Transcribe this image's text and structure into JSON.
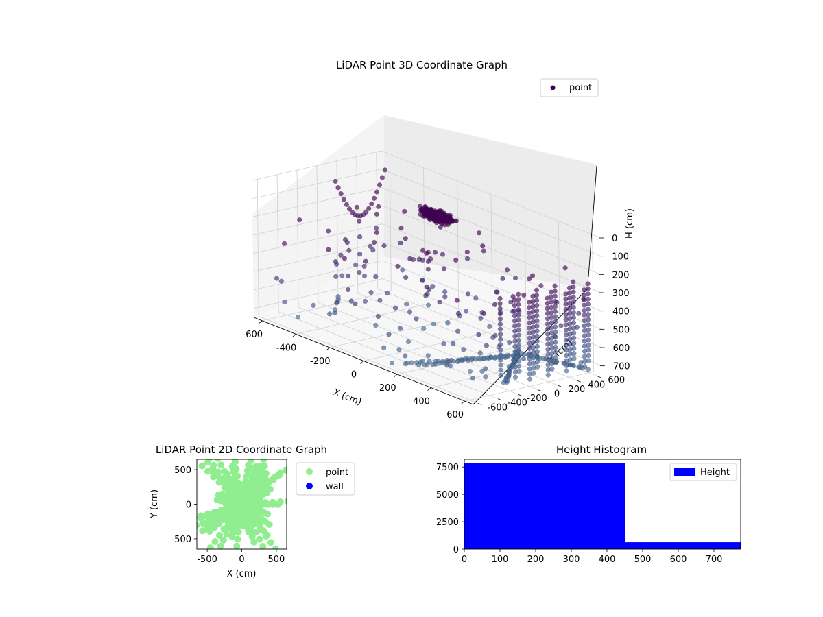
{
  "chart_data": [
    {
      "type": "scatter",
      "title": "LiDAR Point 3D Coordinate Graph",
      "projection": "3d",
      "xlabel": "X (cm)",
      "ylabel": "Y (cm)",
      "zlabel": "H (cm)",
      "xlim": [
        -650,
        650
      ],
      "ylim": [
        -650,
        650
      ],
      "zlim": [
        750,
        0
      ],
      "x_ticks": [
        -600,
        -400,
        -200,
        0,
        200,
        400,
        600
      ],
      "y_ticks": [
        -600,
        -400,
        -200,
        0,
        200,
        400,
        600
      ],
      "z_ticks": [
        0,
        100,
        200,
        300,
        400,
        500,
        600,
        700
      ],
      "grid": true,
      "legend": {
        "placement": "top-right",
        "entries": [
          "point"
        ]
      },
      "colormap": "viridis (dark purple to blue by height)",
      "series": [
        {
          "name": "point",
          "color": "#440154",
          "groups": [
            {
              "x": 0,
              "y": 100,
              "z": 30,
              "spread": 120,
              "count": 260
            },
            {
              "x": 0,
              "y": 50,
              "z": 200,
              "spread": 520,
              "count": 160
            }
          ],
          "wall": {
            "x": [
              520,
              620
            ],
            "y": [
              -150,
              650
            ],
            "z": [
              280,
              700
            ],
            "columns": 14,
            "rows": 16
          },
          "floor_lines": [
            {
              "from": [
                340,
                330,
                720
              ],
              "to": [
                160,
                -520,
                720
              ]
            },
            {
              "from": [
                330,
                340,
                720
              ],
              "to": [
                250,
                -500,
                700
              ]
            },
            {
              "from": [
                320,
                360,
                720
              ],
              "to": [
                600,
                -250,
                700
              ]
            },
            {
              "from": [
                300,
                380,
                720
              ],
              "to": [
                640,
                500,
                700
              ]
            }
          ],
          "edge_arc": {
            "x": -600,
            "y": [
              100,
              600
            ],
            "z": [
              80,
              300
            ]
          }
        }
      ]
    },
    {
      "type": "scatter",
      "title": "LiDAR Point 2D Coordinate Graph",
      "xlabel": "X (cm)",
      "ylabel": "Y (cm)",
      "xlim": [
        -650,
        650
      ],
      "ylim": [
        -650,
        650
      ],
      "x_ticks": [
        -500,
        0,
        500
      ],
      "y_ticks": [
        -500,
        0,
        500
      ],
      "legend": {
        "placement": "outside-right",
        "entries": [
          "point",
          "wall"
        ]
      },
      "series": [
        {
          "name": "point",
          "color": "#90ee90",
          "count": 1200
        },
        {
          "name": "wall",
          "color": "#0000ff",
          "count": 0
        }
      ]
    },
    {
      "type": "bar",
      "title": "Height Histogram",
      "xlabel": "",
      "ylabel": "",
      "xlim": [
        0,
        775
      ],
      "ylim": [
        0,
        8200
      ],
      "x_ticks": [
        0,
        100,
        200,
        300,
        400,
        500,
        600,
        700
      ],
      "y_ticks": [
        0,
        2500,
        5000,
        7500
      ],
      "legend": {
        "placement": "top-right",
        "entries": [
          "Height"
        ]
      },
      "series": [
        {
          "name": "Height",
          "color": "#0000ff",
          "bins": [
            {
              "from": 0,
              "to": 450,
              "count": 7850
            },
            {
              "from": 450,
              "to": 775,
              "count": 620
            }
          ]
        }
      ]
    }
  ]
}
